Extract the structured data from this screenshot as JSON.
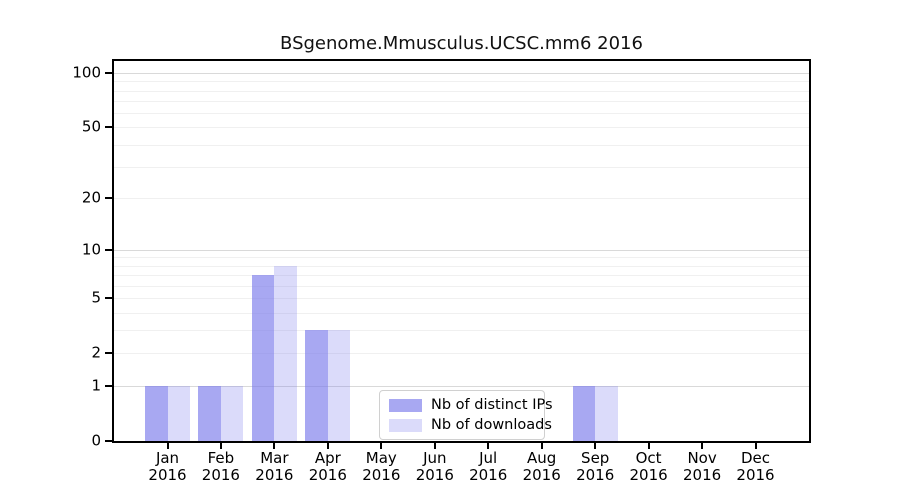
{
  "chart_data": {
    "type": "bar",
    "title": "BSgenome.Mmusculus.UCSC.mm6 2016",
    "categories": [
      "Jan 2016",
      "Feb 2016",
      "Mar 2016",
      "Apr 2016",
      "May 2016",
      "Jun 2016",
      "Jul 2016",
      "Aug 2016",
      "Sep 2016",
      "Oct 2016",
      "Nov 2016",
      "Dec 2016"
    ],
    "series": [
      {
        "name": "Nb of distinct IPs",
        "color": "rgba(123,123,235,0.66)",
        "solid_color": "#a9a9f2",
        "values": [
          1,
          1,
          7,
          3,
          0,
          0,
          0,
          0,
          1,
          0,
          0,
          0
        ]
      },
      {
        "name": "Nb of downloads",
        "color": "rgba(123,123,235,0.27)",
        "solid_color": "#dedef8",
        "values": [
          1,
          1,
          8,
          3,
          0,
          0,
          0,
          0,
          1,
          0,
          0,
          0
        ]
      }
    ],
    "xlabel": "",
    "ylabel": "",
    "yscale": "log1p",
    "ylim": [
      0,
      115
    ],
    "ytick_values": [
      0,
      1,
      2,
      5,
      10,
      20,
      50,
      100
    ],
    "gridlines": {
      "major": [
        1,
        10,
        100
      ],
      "minor": [
        2,
        3,
        4,
        5,
        6,
        7,
        8,
        9,
        20,
        30,
        40,
        50,
        60,
        70,
        80,
        90
      ]
    },
    "grid": true,
    "legend_position": "inside-bottom-center",
    "colors": {
      "axis": "#000000",
      "grid_major": "#d9d9d9",
      "grid_minor": "#f0f0f0",
      "background": "#ffffff"
    }
  }
}
